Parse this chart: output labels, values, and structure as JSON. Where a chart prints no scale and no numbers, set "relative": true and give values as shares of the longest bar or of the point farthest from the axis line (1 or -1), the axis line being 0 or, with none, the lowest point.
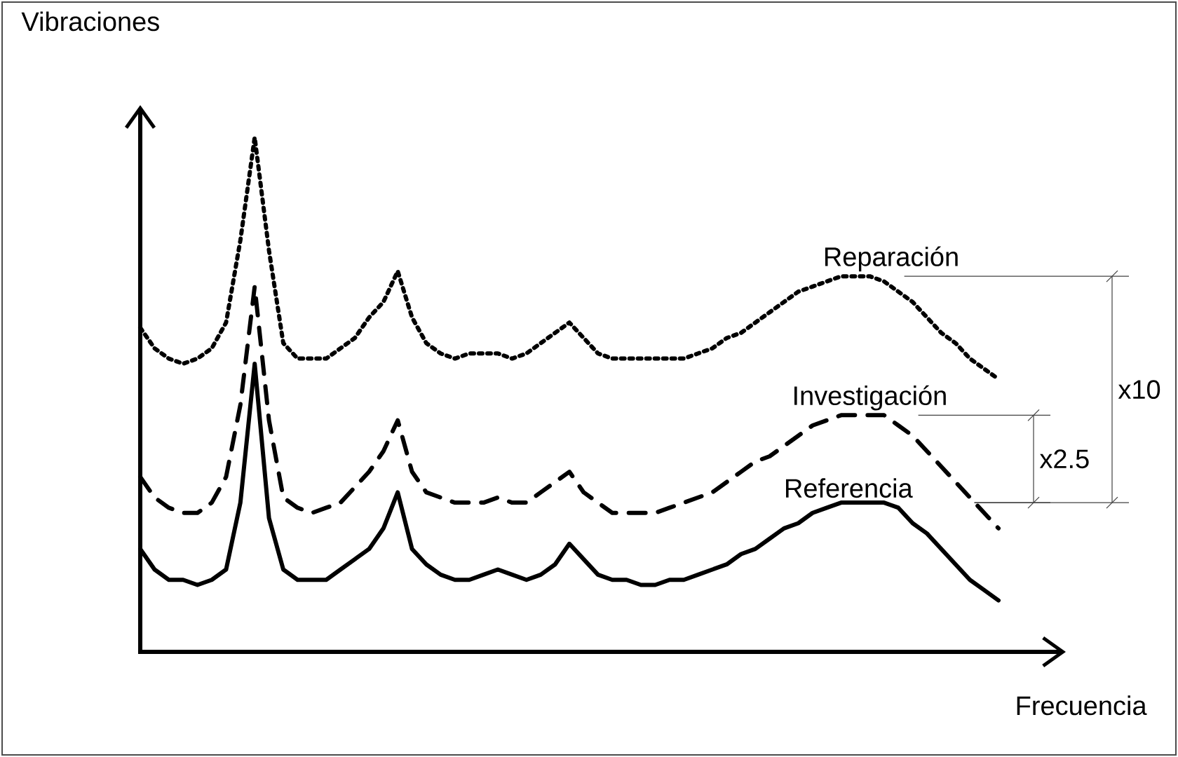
{
  "chart_data": {
    "type": "line",
    "relative": true,
    "xlabel": "Frecuencia",
    "ylabel": "Vibraciones",
    "categories": [
      null,
      null,
      null,
      null,
      null,
      null,
      null,
      null,
      null,
      null,
      null,
      null,
      null,
      null,
      null,
      null,
      null,
      null,
      null,
      null,
      null,
      null,
      null,
      null,
      null,
      null,
      null,
      null,
      null,
      null,
      null,
      null,
      null,
      null,
      null,
      null,
      null,
      null,
      null,
      null,
      null,
      null,
      null,
      null,
      null,
      null,
      null,
      null,
      null,
      null,
      null,
      null,
      null,
      null,
      null,
      null,
      null,
      null,
      null,
      null,
      null
    ],
    "series": [
      {
        "name": "Reparación",
        "color": "#000000",
        "line_style": "dotted",
        "values": [
          0.63,
          0.59,
          0.57,
          0.56,
          0.57,
          0.59,
          0.64,
          0.8,
          1,
          0.78,
          0.6,
          0.57,
          0.57,
          0.57,
          0.59,
          0.61,
          0.65,
          0.68,
          0.74,
          0.65,
          0.6,
          0.58,
          0.57,
          0.58,
          0.58,
          0.58,
          0.57,
          0.58,
          0.6,
          0.62,
          0.64,
          0.61,
          0.58,
          0.57,
          0.57,
          0.57,
          0.57,
          0.57,
          0.57,
          0.58,
          0.59,
          0.61,
          0.62,
          0.64,
          0.66,
          0.68,
          0.7,
          0.71,
          0.72,
          0.73,
          0.73,
          0.73,
          0.72,
          0.7,
          0.68,
          0.65,
          0.62,
          0.6,
          0.57,
          0.55,
          0.53
        ]
      },
      {
        "name": "Investigación",
        "color": "#000000",
        "line_style": "dashed",
        "values": [
          0.34,
          0.3,
          0.28,
          0.27,
          0.27,
          0.29,
          0.34,
          0.48,
          0.71,
          0.45,
          0.3,
          0.28,
          0.27,
          0.28,
          0.29,
          0.32,
          0.35,
          0.39,
          0.45,
          0.35,
          0.31,
          0.3,
          0.29,
          0.29,
          0.29,
          0.3,
          0.29,
          0.29,
          0.31,
          0.33,
          0.35,
          0.31,
          0.29,
          0.27,
          0.27,
          0.27,
          0.27,
          0.28,
          0.29,
          0.3,
          0.31,
          0.33,
          0.35,
          0.37,
          0.38,
          0.4,
          0.42,
          0.44,
          0.45,
          0.46,
          0.46,
          0.46,
          0.46,
          0.44,
          0.42,
          0.39,
          0.36,
          0.33,
          0.3,
          0.27,
          0.24
        ]
      },
      {
        "name": "Referencia",
        "color": "#000000",
        "line_style": "solid",
        "values": [
          0.2,
          0.16,
          0.14,
          0.14,
          0.13,
          0.14,
          0.16,
          0.29,
          0.56,
          0.26,
          0.16,
          0.14,
          0.14,
          0.14,
          0.16,
          0.18,
          0.2,
          0.24,
          0.31,
          0.2,
          0.17,
          0.15,
          0.14,
          0.14,
          0.15,
          0.16,
          0.15,
          0.14,
          0.15,
          0.17,
          0.21,
          0.18,
          0.15,
          0.14,
          0.14,
          0.13,
          0.13,
          0.14,
          0.14,
          0.15,
          0.16,
          0.17,
          0.19,
          0.2,
          0.22,
          0.24,
          0.25,
          0.27,
          0.28,
          0.29,
          0.29,
          0.29,
          0.29,
          0.28,
          0.25,
          0.23,
          0.2,
          0.17,
          0.14,
          0.12,
          0.1
        ]
      }
    ],
    "annotations": [
      "x10",
      "x2.5"
    ]
  }
}
